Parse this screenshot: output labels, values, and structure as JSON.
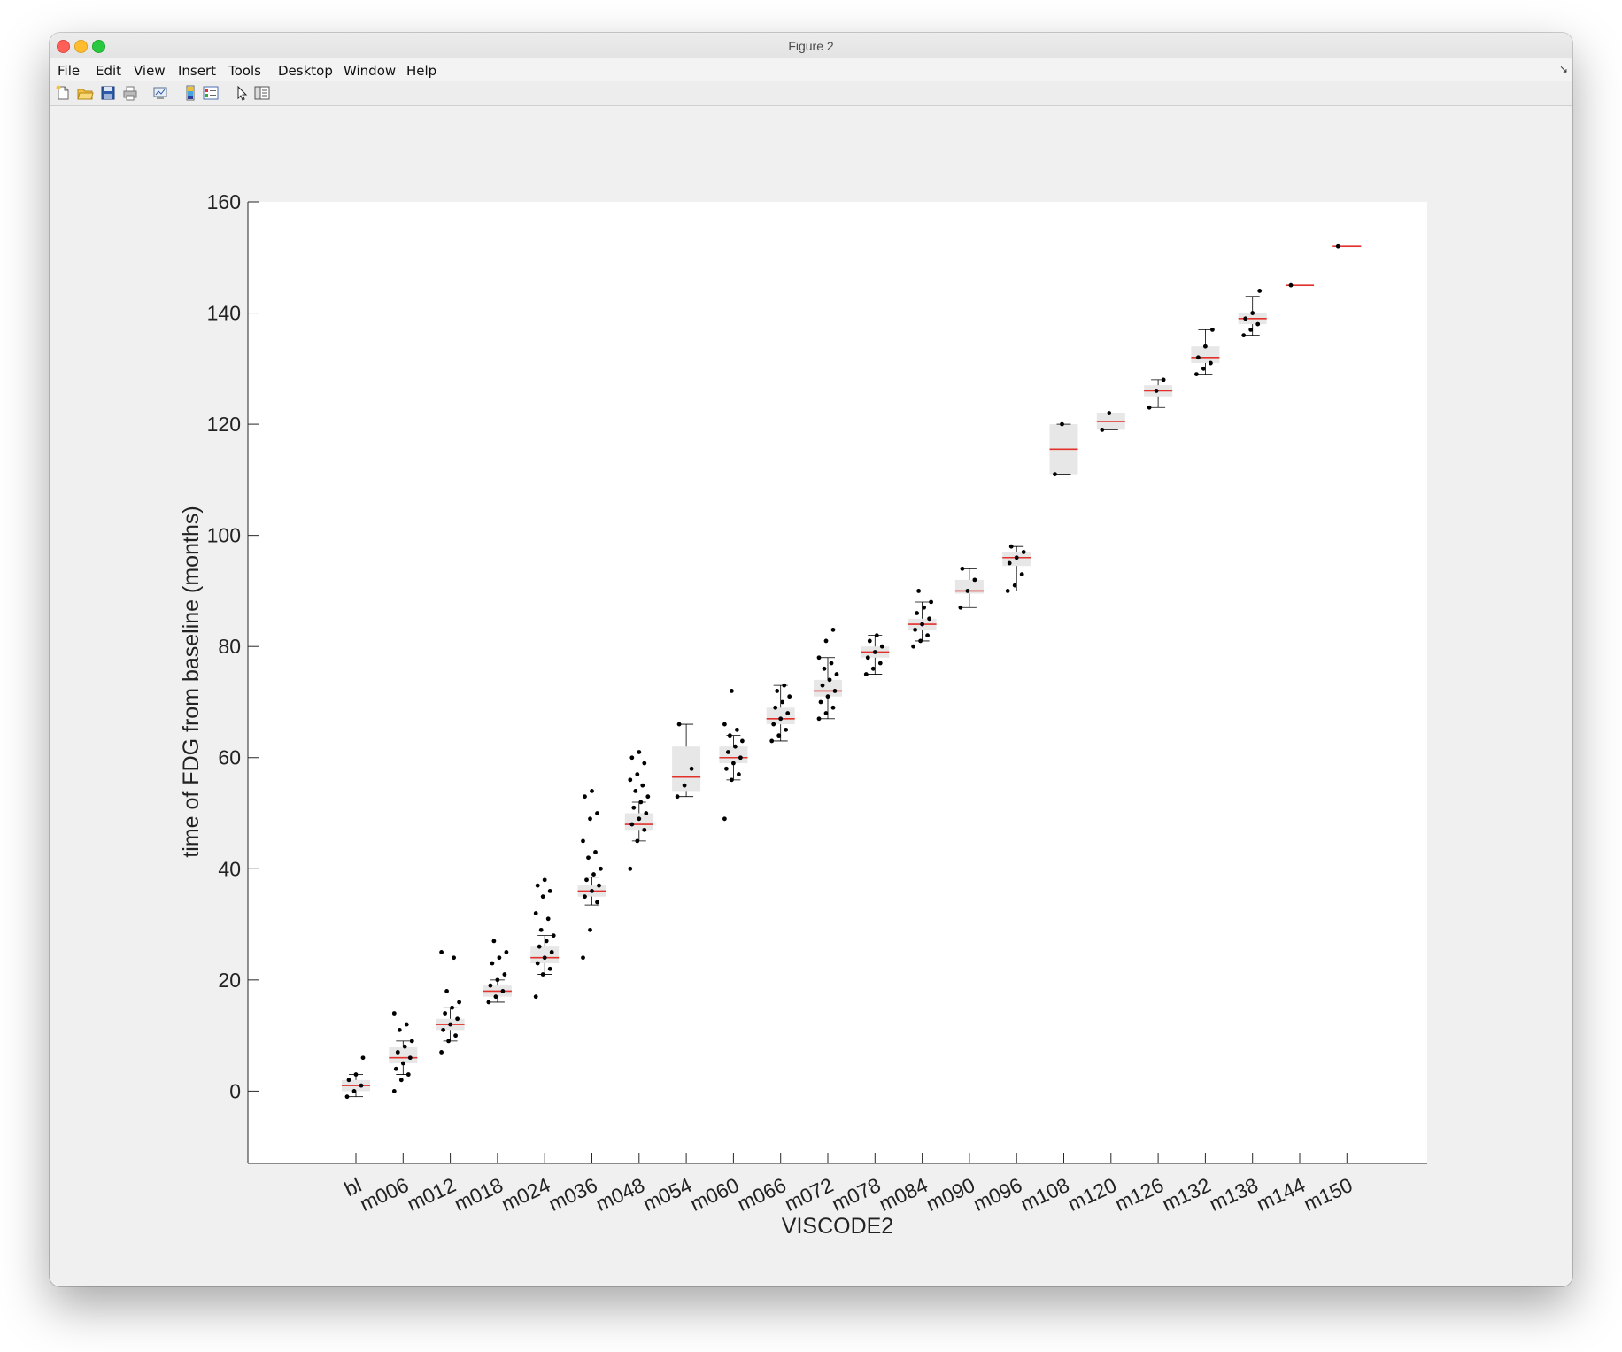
{
  "window": {
    "title": "Figure 2"
  },
  "menu": [
    "File",
    "Edit",
    "View",
    "Insert",
    "Tools",
    "Desktop",
    "Window",
    "Help"
  ],
  "toolbar_icons": [
    "new-figure-icon",
    "open-file-icon",
    "save-icon",
    "print-icon",
    "link-plot-icon",
    "colorbar-icon",
    "legend-icon",
    "edit-plot-arrow-icon",
    "property-inspector-icon"
  ],
  "chart_data": {
    "type": "boxplot",
    "xlabel": "VISCODE2",
    "ylabel": "time of FDG from baseline (months)",
    "ylim": [
      -13,
      160
    ],
    "yticks": [
      0,
      20,
      40,
      60,
      80,
      100,
      120,
      140,
      160
    ],
    "categories": [
      "bl",
      "m006",
      "m012",
      "m018",
      "m024",
      "m036",
      "m048",
      "m054",
      "m060",
      "m066",
      "m072",
      "m078",
      "m084",
      "m090",
      "m096",
      "m108",
      "m120",
      "m126",
      "m132",
      "m138",
      "m144",
      "m150"
    ],
    "boxes": [
      {
        "q1": 0,
        "median": 1,
        "q3": 2,
        "wlo": -1,
        "whi": 3,
        "points": [
          -1,
          0,
          1,
          2,
          3,
          6
        ]
      },
      {
        "q1": 5,
        "median": 6,
        "q3": 8,
        "wlo": 3,
        "whi": 9,
        "points": [
          0,
          2,
          3,
          4,
          5,
          6,
          7,
          8,
          9,
          11,
          12,
          14
        ]
      },
      {
        "q1": 11,
        "median": 12,
        "q3": 13,
        "wlo": 9,
        "whi": 15,
        "points": [
          7,
          9,
          10,
          11,
          12,
          13,
          14,
          15,
          16,
          18,
          24,
          25
        ]
      },
      {
        "q1": 17,
        "median": 18,
        "q3": 19,
        "wlo": 16,
        "whi": 20,
        "points": [
          16,
          17,
          18,
          19,
          20,
          21,
          23,
          24,
          25,
          27
        ]
      },
      {
        "q1": 23,
        "median": 24,
        "q3": 26,
        "wlo": 21,
        "whi": 28,
        "points": [
          17,
          21,
          22,
          23,
          24,
          25,
          26,
          27,
          28,
          29,
          31,
          32,
          35,
          36,
          37,
          38
        ]
      },
      {
        "q1": 35,
        "median": 36,
        "q3": 37,
        "wlo": 33.5,
        "whi": 38.5,
        "points": [
          24,
          29,
          34,
          35,
          36,
          37,
          38,
          39,
          40,
          42,
          43,
          45,
          49,
          50,
          53,
          54
        ]
      },
      {
        "q1": 47,
        "median": 48,
        "q3": 50,
        "wlo": 45,
        "whi": 52,
        "points": [
          40,
          45,
          47,
          48,
          49,
          50,
          51,
          52,
          53,
          54,
          55,
          56,
          57,
          59,
          60,
          61
        ]
      },
      {
        "q1": 54,
        "median": 56.5,
        "q3": 62,
        "wlo": 53,
        "whi": 66,
        "points": [
          53,
          55,
          58,
          66
        ]
      },
      {
        "q1": 59,
        "median": 60,
        "q3": 62,
        "wlo": 56,
        "whi": 64,
        "points": [
          49,
          56,
          57,
          58,
          59,
          60,
          61,
          62,
          63,
          64,
          65,
          66,
          72
        ]
      },
      {
        "q1": 66,
        "median": 67,
        "q3": 69,
        "wlo": 63,
        "whi": 73,
        "points": [
          63,
          64,
          65,
          66,
          67,
          68,
          69,
          70,
          71,
          72,
          73
        ]
      },
      {
        "q1": 71,
        "median": 72,
        "q3": 74,
        "wlo": 67,
        "whi": 78,
        "points": [
          67,
          68,
          69,
          70,
          71,
          72,
          73,
          74,
          75,
          76,
          77,
          78,
          81,
          83
        ]
      },
      {
        "q1": 78,
        "median": 79,
        "q3": 80,
        "wlo": 75,
        "whi": 82,
        "points": [
          75,
          76,
          77,
          78,
          79,
          80,
          81,
          82
        ]
      },
      {
        "q1": 83,
        "median": 84,
        "q3": 85,
        "wlo": 81,
        "whi": 88,
        "points": [
          80,
          81,
          82,
          83,
          84,
          85,
          86,
          87,
          88,
          90
        ]
      },
      {
        "q1": 89.5,
        "median": 90,
        "q3": 92,
        "wlo": 87,
        "whi": 94,
        "points": [
          87,
          90,
          92,
          94
        ]
      },
      {
        "q1": 94.5,
        "median": 96,
        "q3": 97,
        "wlo": 90,
        "whi": 98,
        "points": [
          90,
          91,
          93,
          95,
          96,
          97,
          98
        ]
      },
      {
        "q1": 111,
        "median": 115.5,
        "q3": 120,
        "wlo": 111,
        "whi": 120,
        "points": [
          111,
          120
        ]
      },
      {
        "q1": 119,
        "median": 120.5,
        "q3": 122,
        "wlo": 119,
        "whi": 122,
        "points": [
          119,
          122
        ]
      },
      {
        "q1": 125,
        "median": 126,
        "q3": 127,
        "wlo": 123,
        "whi": 128,
        "points": [
          123,
          126,
          128
        ]
      },
      {
        "q1": 131,
        "median": 132,
        "q3": 134,
        "wlo": 129,
        "whi": 137,
        "points": [
          129,
          130,
          131,
          132,
          134,
          137
        ]
      },
      {
        "q1": 138,
        "median": 139,
        "q3": 140,
        "wlo": 136,
        "whi": 143,
        "points": [
          136,
          137,
          138,
          139,
          140,
          144
        ]
      },
      {
        "q1": 145,
        "median": 145,
        "q3": 145,
        "wlo": 145,
        "whi": 145,
        "points": [
          145
        ]
      },
      {
        "q1": 152,
        "median": 152,
        "q3": 152,
        "wlo": 152,
        "whi": 152,
        "points": [
          152
        ]
      }
    ],
    "colors": {
      "box_fill": "#e6e7e6",
      "median": "#e2312b",
      "points": "#000000",
      "whisker": "#000000"
    },
    "grid": false
  }
}
